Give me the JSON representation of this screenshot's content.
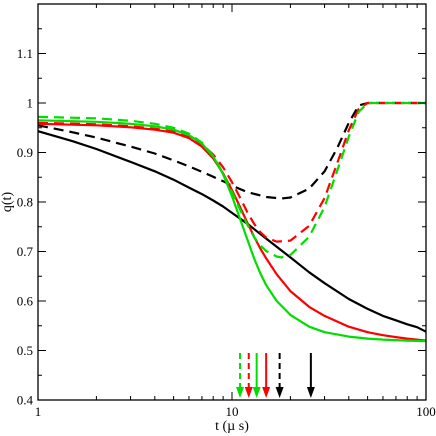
{
  "chart_data": {
    "type": "line",
    "xlabel": "t (µ s)",
    "ylabel": "q(t)",
    "xscale": "log",
    "xlim": [
      1,
      100
    ],
    "ylim": [
      0.4,
      1.2
    ],
    "x_ticks": [
      1,
      10,
      100
    ],
    "x_tick_labels": [
      "1",
      "10",
      "100"
    ],
    "y_ticks": [
      0.4,
      0.5,
      0.6,
      0.7,
      0.8,
      0.9,
      1.0,
      1.1
    ],
    "y_tick_labels": [
      "0.4",
      "0.5",
      "0.6",
      "0.7",
      "0.8",
      "0.9",
      "1",
      "1.1"
    ],
    "grid": false,
    "legend": "none",
    "series": [
      {
        "color": "#000000",
        "dash": "solid",
        "x": [
          1,
          1.5,
          2,
          3,
          4,
          5,
          6,
          7,
          8,
          9,
          10,
          12,
          15,
          20,
          25,
          30,
          40,
          50,
          60,
          70,
          80,
          90,
          100
        ],
        "y": [
          0.943,
          0.923,
          0.907,
          0.881,
          0.862,
          0.845,
          0.829,
          0.816,
          0.803,
          0.791,
          0.778,
          0.756,
          0.726,
          0.688,
          0.658,
          0.636,
          0.604,
          0.584,
          0.57,
          0.561,
          0.553,
          0.547,
          0.538
        ]
      },
      {
        "color": "#000000",
        "dash": "dashed",
        "x": [
          1,
          1.5,
          2,
          3,
          4,
          5,
          6,
          7,
          8,
          9,
          10,
          12,
          15,
          18,
          20,
          25,
          30,
          35,
          40,
          45,
          50,
          60,
          70,
          80,
          90,
          100
        ],
        "y": [
          0.955,
          0.941,
          0.93,
          0.912,
          0.898,
          0.884,
          0.872,
          0.861,
          0.851,
          0.842,
          0.833,
          0.82,
          0.81,
          0.807,
          0.809,
          0.827,
          0.862,
          0.91,
          0.96,
          0.995,
          1.0,
          1.0,
          1.0,
          1.0,
          1.0,
          1.0
        ]
      },
      {
        "color": "#ff0000",
        "dash": "solid",
        "x": [
          1,
          2,
          3,
          4,
          5,
          6,
          7,
          8,
          9,
          10,
          11,
          12,
          13,
          14,
          15,
          17,
          20,
          25,
          30,
          40,
          50,
          60,
          70,
          80,
          100
        ],
        "y": [
          0.958,
          0.955,
          0.951,
          0.946,
          0.94,
          0.929,
          0.912,
          0.888,
          0.858,
          0.824,
          0.79,
          0.758,
          0.73,
          0.706,
          0.686,
          0.654,
          0.62,
          0.588,
          0.57,
          0.548,
          0.537,
          0.531,
          0.527,
          0.524,
          0.52
        ]
      },
      {
        "color": "#ff0000",
        "dash": "dashed",
        "x": [
          1,
          2,
          3,
          4,
          5,
          6,
          7,
          8,
          9,
          10,
          11,
          12,
          13,
          14,
          15,
          17,
          20,
          25,
          30,
          35,
          40,
          45,
          50,
          60,
          70,
          80,
          90,
          100
        ],
        "y": [
          0.96,
          0.957,
          0.953,
          0.948,
          0.942,
          0.932,
          0.917,
          0.896,
          0.87,
          0.84,
          0.809,
          0.779,
          0.756,
          0.739,
          0.728,
          0.72,
          0.722,
          0.752,
          0.808,
          0.88,
          0.945,
          0.988,
          1.0,
          1.0,
          1.0,
          1.0,
          1.0,
          1.0
        ]
      },
      {
        "color": "#00dd00",
        "dash": "solid",
        "x": [
          1,
          2,
          3,
          4,
          5,
          6,
          7,
          8,
          9,
          10,
          11,
          12,
          13,
          14,
          15,
          17,
          20,
          25,
          30,
          40,
          50,
          60,
          70,
          80,
          100
        ],
        "y": [
          0.965,
          0.962,
          0.958,
          0.953,
          0.946,
          0.935,
          0.918,
          0.892,
          0.856,
          0.812,
          0.766,
          0.724,
          0.686,
          0.656,
          0.632,
          0.6,
          0.572,
          0.548,
          0.537,
          0.528,
          0.524,
          0.522,
          0.521,
          0.52,
          0.519
        ]
      },
      {
        "color": "#00dd00",
        "dash": "dashed",
        "x": [
          1,
          2,
          3,
          4,
          5,
          6,
          7,
          8,
          9,
          10,
          11,
          12,
          13,
          14,
          15,
          17,
          18,
          20,
          25,
          30,
          35,
          40,
          45,
          50,
          60,
          70,
          80,
          90,
          100
        ],
        "y": [
          0.972,
          0.969,
          0.964,
          0.958,
          0.95,
          0.938,
          0.92,
          0.893,
          0.858,
          0.82,
          0.785,
          0.754,
          0.729,
          0.712,
          0.701,
          0.69,
          0.688,
          0.693,
          0.73,
          0.79,
          0.865,
          0.932,
          0.982,
          1.0,
          1.0,
          1.0,
          1.0,
          1.0,
          1.0
        ]
      }
    ],
    "arrows": [
      {
        "x": 11.0,
        "color": "#00dd00",
        "dash": "dashed"
      },
      {
        "x": 12.2,
        "color": "#ff0000",
        "dash": "dashed"
      },
      {
        "x": 13.4,
        "color": "#00dd00",
        "dash": "solid"
      },
      {
        "x": 15.0,
        "color": "#ff0000",
        "dash": "solid"
      },
      {
        "x": 17.6,
        "color": "#000000",
        "dash": "dashed"
      },
      {
        "x": 25.5,
        "color": "#000000",
        "dash": "solid"
      }
    ]
  }
}
